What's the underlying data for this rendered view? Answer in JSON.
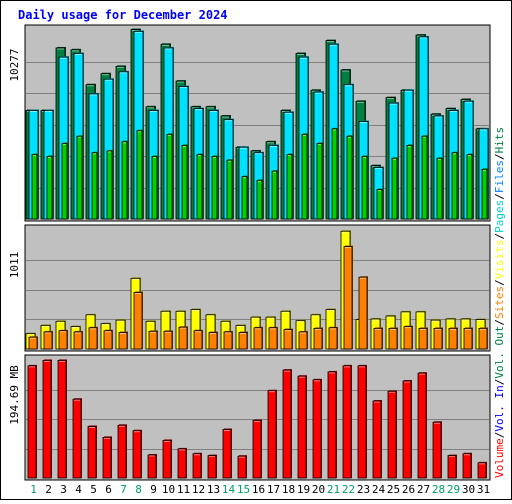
{
  "chart_data": {
    "type": "bar",
    "title": "Daily usage for December 2024",
    "categories": [
      "1",
      "2",
      "3",
      "4",
      "5",
      "6",
      "7",
      "8",
      "9",
      "10",
      "11",
      "12",
      "13",
      "14",
      "15",
      "16",
      "17",
      "18",
      "19",
      "20",
      "21",
      "22",
      "23",
      "24",
      "25",
      "26",
      "27",
      "28",
      "29",
      "30",
      "31"
    ],
    "weekend_days": [
      "1",
      "7",
      "8",
      "14",
      "15",
      "21",
      "22",
      "28",
      "29"
    ],
    "panels": [
      {
        "id": "hits-files-pages",
        "ymax_label": "10277",
        "ymax": 10277,
        "series": [
          {
            "name": "Hits",
            "color": "#008040",
            "values": [
              5900,
              5900,
              9300,
              9200,
              7300,
              7900,
              8300,
              10300,
              6100,
              9500,
              7500,
              6100,
              6100,
              5600,
              3900,
              3700,
              4200,
              5900,
              9000,
              7000,
              9700,
              8100,
              6400,
              2900,
              6600,
              7000,
              10000,
              5700,
              6000,
              6500,
              4900
            ]
          },
          {
            "name": "Files",
            "color": "#00E0FF",
            "values": [
              5900,
              5900,
              8800,
              9000,
              6800,
              7600,
              8000,
              10200,
              5900,
              9300,
              7200,
              6000,
              5900,
              5400,
              3900,
              3600,
              4000,
              5800,
              8800,
              6900,
              9500,
              7300,
              5300,
              2800,
              6300,
              7000,
              9900,
              5600,
              5900,
              6400,
              4900
            ]
          },
          {
            "name": "Pages",
            "color": "#00D000",
            "values": [
              3500,
              3400,
              4100,
              4500,
              3600,
              3700,
              4200,
              4800,
              3400,
              4600,
              4000,
              3500,
              3400,
              3200,
              2300,
              2100,
              2600,
              3500,
              4600,
              4100,
              4900,
              4500,
              3400,
              1600,
              3300,
              4000,
              4500,
              3300,
              3600,
              3500,
              2700
            ]
          }
        ]
      },
      {
        "id": "visits-sites",
        "ymax_label": "1011",
        "ymax": 1011,
        "series": [
          {
            "name": "Visits",
            "color": "#FFFF00",
            "values": [
              130,
              200,
              235,
              190,
              290,
              215,
              245,
              600,
              235,
              320,
              320,
              335,
              290,
              235,
              200,
              270,
              270,
              320,
              240,
              290,
              335,
              1000,
              250,
              255,
              280,
              315,
              315,
              245,
              255,
              255,
              250
            ]
          },
          {
            "name": "Sites",
            "color": "#FF8000",
            "values": [
              100,
              145,
              155,
              145,
              180,
              155,
              140,
              480,
              150,
              150,
              185,
              155,
              140,
              145,
              140,
              180,
              180,
              165,
              145,
              175,
              180,
              870,
              610,
              175,
              175,
              190,
              175,
              175,
              175,
              175,
              175
            ]
          }
        ]
      },
      {
        "id": "volume",
        "ymax_label": "194.69 MB",
        "ymax": 194.69,
        "series": [
          {
            "name": "Volume",
            "color": "#FF0000",
            "values": [
              185,
              194,
              194,
              130,
              85,
              67,
              87,
              78,
              38,
              62,
              48,
              40,
              37,
              80,
              36,
              95,
              144,
              178,
              168,
              162,
              175,
              185,
              185,
              127,
              143,
              160,
              173,
              92,
              37,
              40,
              25
            ]
          }
        ]
      }
    ],
    "right_legend": [
      {
        "text": "Hits",
        "color": "#008040"
      },
      {
        "text": "/",
        "color": "#000000"
      },
      {
        "text": "Files",
        "color": "#0080FF"
      },
      {
        "text": "/",
        "color": "#000000"
      },
      {
        "text": "Pages",
        "color": "#00D0D0"
      },
      {
        "text": "/",
        "color": "#000000"
      },
      {
        "text": "Visits",
        "color": "#FFFF00"
      },
      {
        "text": "/",
        "color": "#000000"
      },
      {
        "text": "Sites",
        "color": "#FF8000"
      },
      {
        "text": "/",
        "color": "#000000"
      },
      {
        "text": "Vol. Out",
        "color": "#008040"
      },
      {
        "text": "/",
        "color": "#000000"
      },
      {
        "text": "Vol. In",
        "color": "#0000FF"
      },
      {
        "text": "/",
        "color": "#000000"
      },
      {
        "text": "Volume",
        "color": "#FF0000"
      }
    ],
    "colors": {
      "title": "#0000FF",
      "plot_bg": "#C0C0C0",
      "frame_bg": "#FFFFFF",
      "grid": "#808080",
      "weekday_label": "#000000",
      "weekend_label": "#00A060"
    }
  }
}
